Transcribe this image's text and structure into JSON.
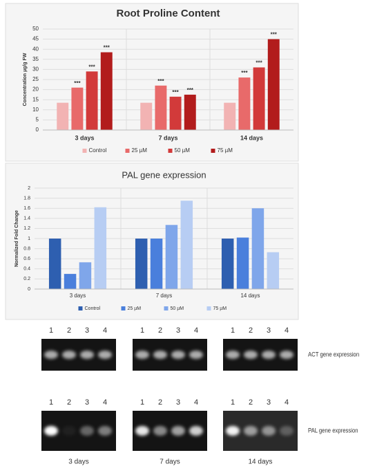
{
  "chart_data": [
    {
      "type": "bar",
      "title": "Root Proline Content",
      "y_label": "Concentration µg/g FW",
      "categories": [
        "3 days",
        "7 days",
        "14 days"
      ],
      "series": [
        {
          "name": "Control",
          "color": "#f2b3b3",
          "values": [
            13.5,
            13.5,
            13.5
          ]
        },
        {
          "name": "25 µM",
          "color": "#e86a6a",
          "values": [
            21,
            22,
            26
          ],
          "annotations": [
            "***",
            "***",
            "***"
          ]
        },
        {
          "name": "50 µM",
          "color": "#d23a3a",
          "values": [
            29,
            16.5,
            31
          ],
          "annotations": [
            "***",
            "***",
            "***"
          ]
        },
        {
          "name": "75 µM",
          "color": "#b21c1c",
          "values": [
            38.5,
            17.5,
            45
          ],
          "annotations": [
            "***",
            "***",
            "***"
          ]
        }
      ],
      "ylim": [
        0,
        50
      ],
      "yticks": [
        0,
        5,
        10,
        15,
        20,
        25,
        30,
        35,
        40,
        45,
        50
      ],
      "grid": true,
      "legend": "bottom"
    },
    {
      "type": "bar",
      "title": "PAL gene expression",
      "y_label": "Normalized Fold Change",
      "categories": [
        "3 days",
        "7 days",
        "14 days"
      ],
      "series": [
        {
          "name": "Control",
          "color": "#2e5fb0",
          "values": [
            1,
            1,
            1
          ]
        },
        {
          "name": "25 µM",
          "color": "#4a7fdc",
          "values": [
            0.3,
            1,
            1.02
          ]
        },
        {
          "name": "50 µM",
          "color": "#7fa6ea",
          "values": [
            0.53,
            1.27,
            1.6
          ]
        },
        {
          "name": "75 µM",
          "color": "#b7cdf3",
          "values": [
            1.62,
            1.75,
            0.73
          ]
        }
      ],
      "ylim": [
        0,
        2
      ],
      "yticks": [
        0,
        0.2,
        0.4,
        0.6,
        0.8,
        1,
        1.2,
        1.4,
        1.6,
        1.8,
        2
      ],
      "grid": true,
      "legend": "bottom"
    }
  ],
  "gel": {
    "lanes": [
      "1",
      "2",
      "3",
      "4"
    ],
    "rows": [
      "ACT gene expression",
      "PAL gene expression"
    ],
    "timepoints": [
      "3 days",
      "7 days",
      "14 days"
    ]
  }
}
